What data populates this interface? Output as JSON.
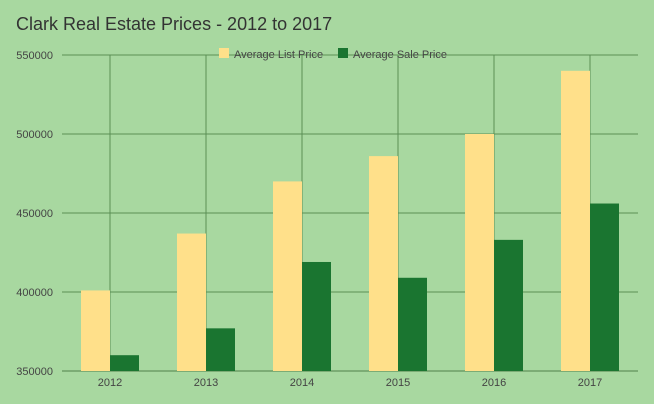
{
  "chart_data": {
    "type": "bar",
    "title": "Clark Real Estate Prices - 2012 to 2017",
    "xlabel": "",
    "ylabel": "",
    "categories": [
      "2012",
      "2013",
      "2014",
      "2015",
      "2016",
      "2017"
    ],
    "series": [
      {
        "name": "Average List Price",
        "color": "#ffe08a",
        "values": [
          401000,
          437000,
          470000,
          486000,
          500000,
          540000
        ]
      },
      {
        "name": "Average Sale Price",
        "color": "#1a7530",
        "values": [
          360000,
          377000,
          419000,
          409000,
          433000,
          456000
        ]
      }
    ],
    "ylim": [
      350000,
      550000
    ],
    "yticks": [
      "350000",
      "400000",
      "450000",
      "500000",
      "550000"
    ],
    "grid": true,
    "legend_position": "top-center",
    "background": "#a8d8a0",
    "gridline_color": "#5b8f55"
  }
}
